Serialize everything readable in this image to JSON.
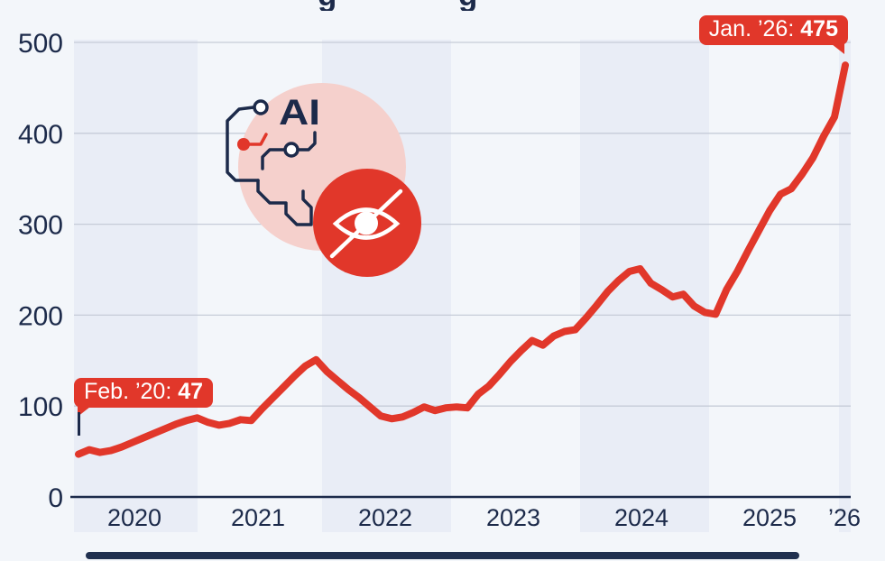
{
  "page": {
    "background": "#f3f6fa",
    "accent_red": "#e1372a",
    "navy": "#1c2a4a",
    "band_shade": "#e9edf6",
    "gridline_color": "#c6ccd8"
  },
  "cropped_title": {
    "visible_glyph_1": "g",
    "visible_glyph_2": "g"
  },
  "badges": {
    "start": {
      "label": "Feb. ’20:",
      "value": "47"
    },
    "end": {
      "label": "Jan. ’26:",
      "value": "475"
    }
  },
  "illustration": {
    "ai_label": "AI",
    "icons": [
      "ai-circuit-icon",
      "hidden-eye-icon"
    ]
  },
  "chart_data": {
    "type": "line",
    "frequency": "monthly",
    "x_start": "Feb 2020",
    "x_end": "Jan 2026",
    "values": [
      47,
      52,
      49,
      51,
      55,
      60,
      65,
      70,
      75,
      80,
      84,
      87,
      82,
      79,
      81,
      85,
      84,
      97,
      109,
      121,
      133,
      144,
      151,
      138,
      128,
      118,
      109,
      99,
      89,
      86,
      88,
      93,
      99,
      95,
      98,
      99,
      98,
      113,
      122,
      135,
      149,
      161,
      172,
      167,
      177,
      182,
      184,
      197,
      211,
      226,
      238,
      248,
      251,
      235,
      228,
      220,
      223,
      210,
      203,
      201,
      228,
      248,
      271,
      293,
      315,
      333,
      339,
      355,
      373,
      397,
      418,
      475
    ],
    "yticks": [
      0,
      100,
      200,
      300,
      400,
      500
    ],
    "xticks": [
      "2020",
      "2021",
      "2022",
      "2023",
      "2024",
      "2025",
      "’26"
    ],
    "ylim": [
      0,
      500
    ],
    "grid": true,
    "line_color": "#e1372a",
    "shaded_year_bands": [
      "2020",
      "2022",
      "2024",
      "’26"
    ],
    "annotations": [
      {
        "text": "Feb. ’20: 47",
        "x": "2020-02",
        "y": 47
      },
      {
        "text": "Jan. ’26: 475",
        "x": "2026-01",
        "y": 475
      }
    ]
  }
}
